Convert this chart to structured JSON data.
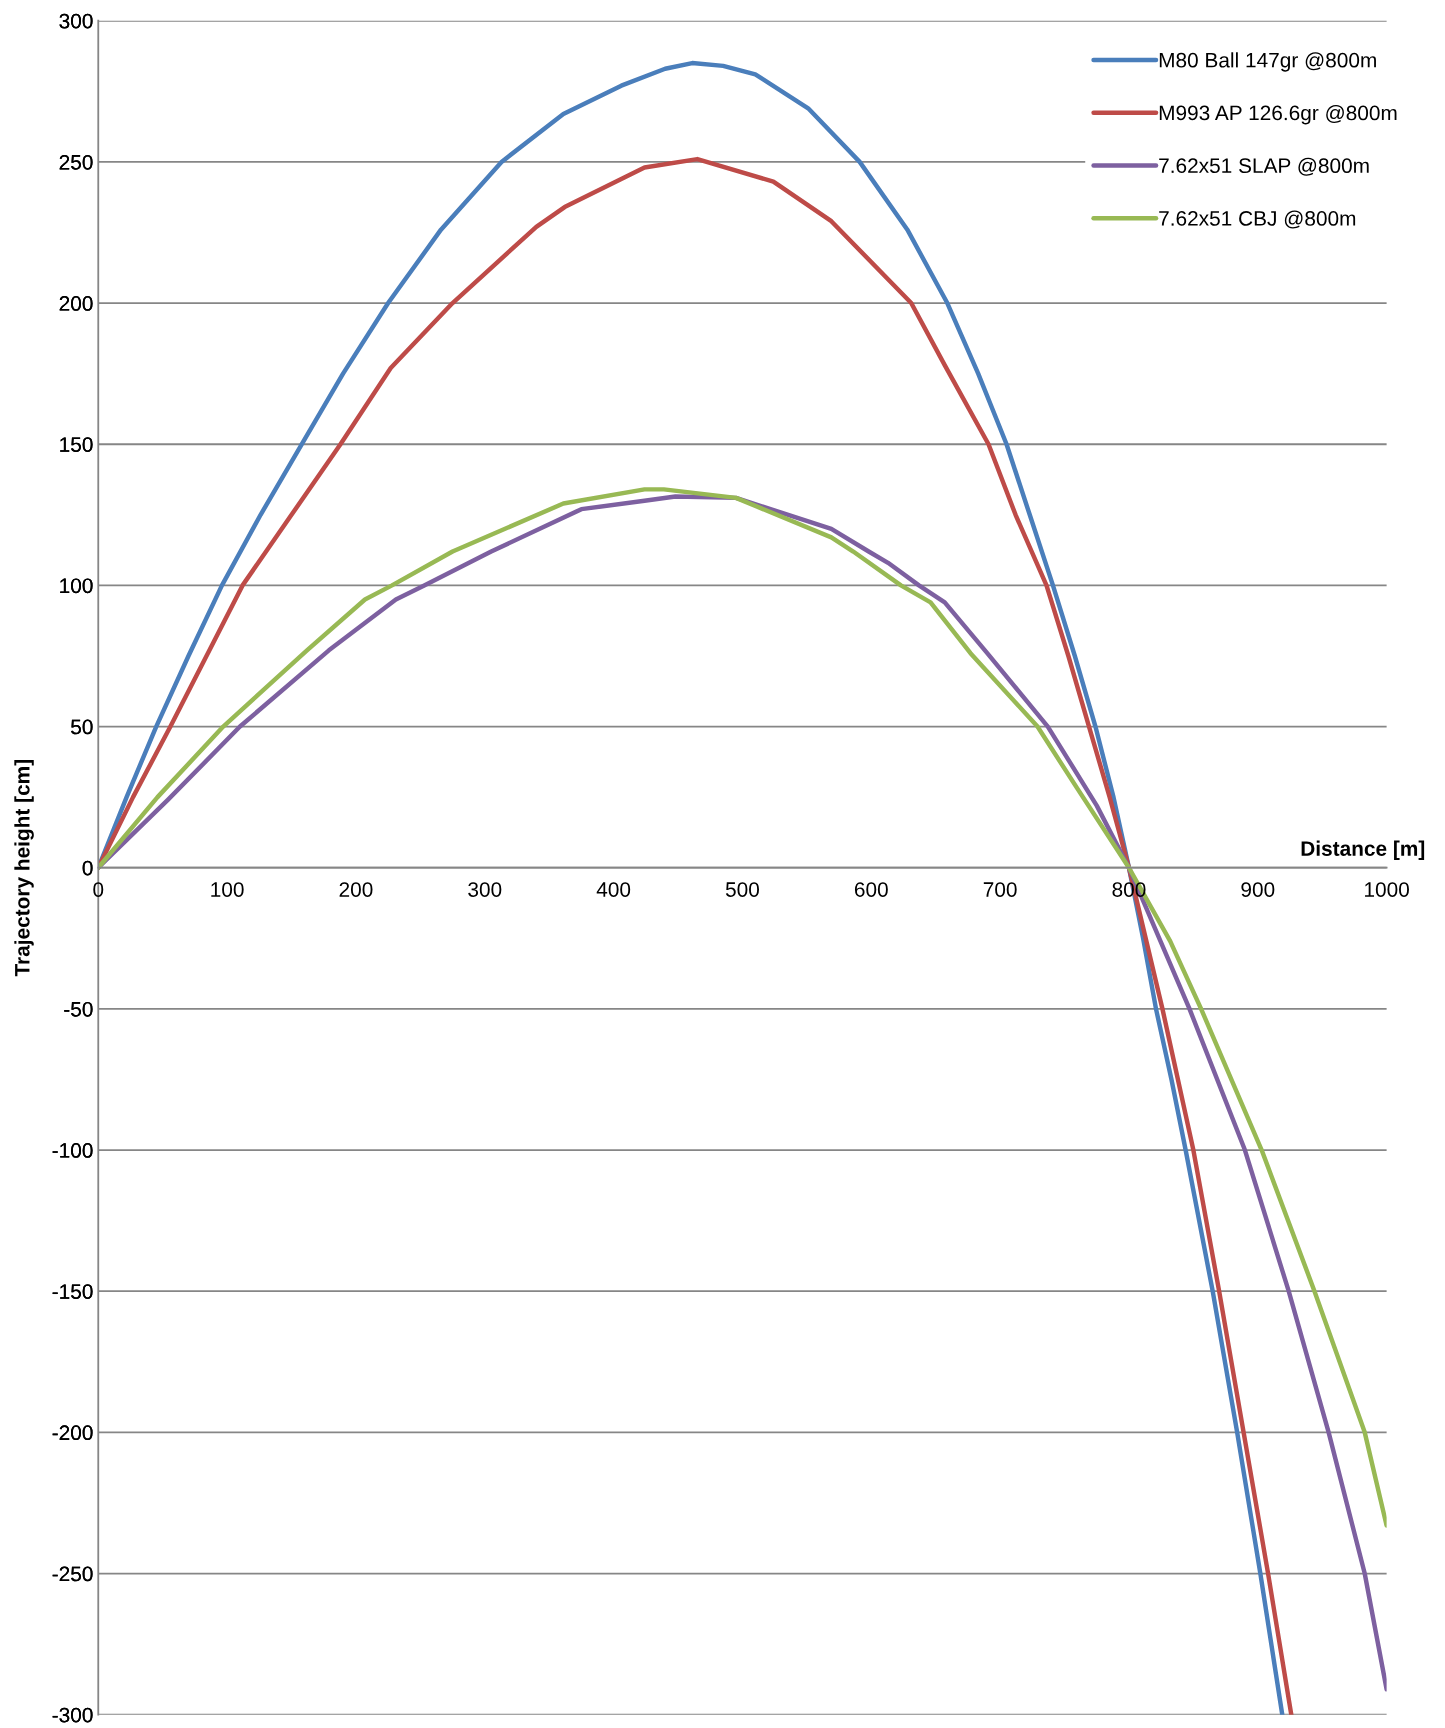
{
  "chart_data": {
    "type": "line",
    "xlabel": "Distance [m]",
    "ylabel": "Trajectory height [cm]",
    "xlim": [
      0,
      1000
    ],
    "ylim": [
      -300,
      300
    ],
    "xticks": [
      0,
      100,
      200,
      300,
      400,
      500,
      600,
      700,
      800,
      900,
      1000
    ],
    "yticks": [
      -300,
      -250,
      -200,
      -150,
      -100,
      -50,
      0,
      50,
      100,
      150,
      200,
      250,
      300
    ],
    "grid": "y",
    "legend": "top right",
    "series": [
      {
        "name": "M80 Ball 147gr @800m",
        "color": "#4a7ebb",
        "x": [
          0,
          22,
          45,
          70,
          96,
          126,
          158,
          190,
          225,
          266,
          313,
          361,
          406,
          440,
          461,
          485,
          510,
          551,
          591,
          628,
          659,
          683,
          705,
          723,
          741,
          758,
          774,
          788,
          800,
          811,
          821,
          833,
          844,
          865,
          884,
          902,
          919
        ],
        "values": [
          0,
          25,
          50,
          75,
          100,
          125,
          150,
          175,
          200,
          226,
          250,
          267,
          277,
          283,
          285,
          284,
          281,
          269,
          250,
          226,
          200,
          175,
          150,
          125,
          100,
          75,
          50,
          25,
          0,
          -25,
          -50,
          -75,
          -100,
          -150,
          -200,
          -250,
          -300
        ]
      },
      {
        "name": "M993 AP 126.6gr @800m",
        "color": "#be4b48",
        "x": [
          0,
          27,
          56,
          84,
          112,
          150,
          188,
          227,
          275,
          340,
          362,
          424,
          465,
          524,
          569,
          631,
          657,
          691,
          712,
          736,
          753,
          769,
          785,
          800,
          826,
          850,
          870,
          889,
          908,
          926
        ],
        "values": [
          0,
          25,
          50,
          75,
          100,
          125,
          150,
          177,
          200,
          227,
          234,
          248,
          251,
          243,
          229,
          200,
          178,
          150,
          125,
          100,
          75,
          50,
          25,
          0,
          -50,
          -100,
          -150,
          -200,
          -250,
          -300
        ]
      },
      {
        "name": "7.62x51 SLAP @800m",
        "color": "#7d60a0",
        "x": [
          0,
          54,
          110,
          179,
          231,
          253,
          305,
          375,
          424,
          448,
          495,
          569,
          598,
          613,
          637,
          657,
          690,
          737,
          775,
          800,
          847,
          890,
          924,
          955,
          983,
          1000
        ],
        "values": [
          0,
          24,
          50,
          77,
          95,
          100,
          112,
          127,
          130,
          131.5,
          131,
          120,
          112,
          108,
          100,
          94,
          76,
          50,
          22,
          0,
          -50,
          -100,
          -150,
          -200,
          -250,
          -291
        ]
      },
      {
        "name": "7.62x51 CBJ @800m",
        "color": "#98b954",
        "x": [
          0,
          46,
          97,
          162,
          207,
          228,
          275,
          361,
          424,
          439,
          495,
          569,
          586,
          623,
          646,
          677,
          729,
          760,
          800,
          832,
          856,
          903,
          944,
          983,
          1000
        ],
        "values": [
          0,
          25,
          50,
          77,
          95,
          100,
          112,
          129,
          134,
          134,
          131,
          117,
          112,
          100,
          94,
          76,
          50,
          28,
          0,
          -26,
          -50,
          -100,
          -150,
          -200,
          -233
        ]
      }
    ]
  }
}
